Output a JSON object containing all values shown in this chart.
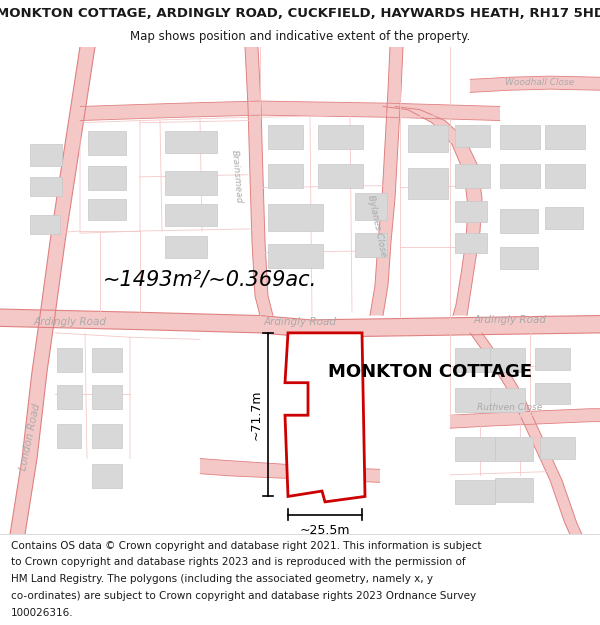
{
  "title": "MONKTON COTTAGE, ARDINGLY ROAD, CUCKFIELD, HAYWARDS HEATH, RH17 5HD",
  "subtitle": "Map shows position and indicative extent of the property.",
  "property_label": "MONKTON COTTAGE",
  "area_label": "~1493m²/~0.369ac.",
  "dim_width": "~25.5m",
  "dim_height": "~71.7m",
  "footnote_lines": [
    "Contains OS data © Crown copyright and database right 2021. This information is subject",
    "to Crown copyright and database rights 2023 and is reproduced with the permission of",
    "HM Land Registry. The polygons (including the associated geometry, namely x, y",
    "co-ordinates) are subject to Crown copyright and database rights 2023 Ordnance Survey",
    "100026316."
  ],
  "bg_color": "#ffffff",
  "map_bg": "#ffffff",
  "road_fill": "#f5c8c8",
  "road_edge": "#e08080",
  "plot_outline": "#f5c8c8",
  "building_fill": "#d8d8d8",
  "building_edge": "#c8c8c8",
  "plot_fill": "#ffffff",
  "plot_edge": "#cc0000",
  "road_label_color": "#aaaaaa",
  "text_color": "#1a1a1a",
  "title_fontsize": 9.5,
  "subtitle_fontsize": 8.5,
  "footnote_fontsize": 7.5
}
